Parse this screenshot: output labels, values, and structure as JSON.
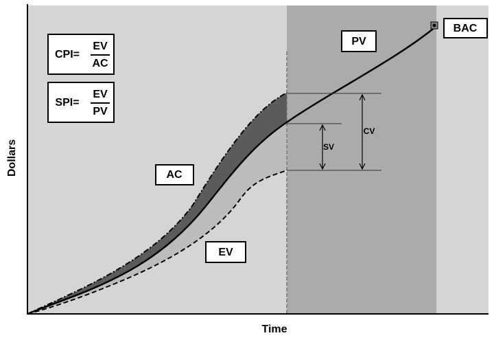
{
  "axes": {
    "y_label": "Dollars",
    "x_label": "Time"
  },
  "labels": {
    "pv": "PV",
    "ac": "AC",
    "ev": "EV",
    "bac": "BAC",
    "sv": "SV",
    "cv": "CV"
  },
  "formulas": [
    {
      "name": "CPI=",
      "numerator": "EV",
      "denominator": "AC"
    },
    {
      "name": "SPI=",
      "numerator": "EV",
      "denominator": "PV"
    }
  ]
}
